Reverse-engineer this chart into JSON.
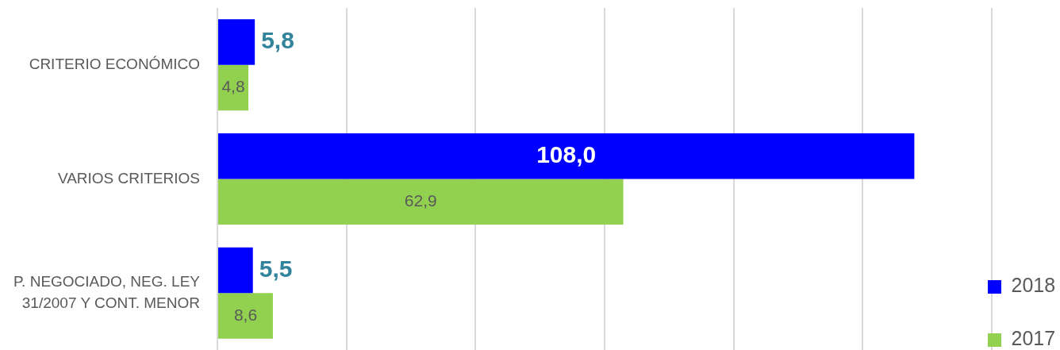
{
  "chart_data": {
    "type": "bar",
    "orientation": "horizontal",
    "categories": [
      "CRITERIO ECONÓMICO",
      "VARIOS CRITERIOS",
      "P. NEGOCIADO, NEG. LEY 31/2007 Y CONT. MENOR"
    ],
    "series": [
      {
        "name": "2018",
        "color": "#0000ff",
        "values": [
          5.8,
          108.0,
          5.5
        ],
        "value_labels": [
          "5,8",
          "108,0",
          "5,5"
        ]
      },
      {
        "name": "2017",
        "color": "#92d050",
        "values": [
          4.8,
          62.9,
          8.6
        ],
        "value_labels": [
          "4,8",
          "62,9",
          "8,6"
        ]
      }
    ],
    "xlim": [
      0,
      120
    ],
    "xticks": [
      {
        "value": 0,
        "label": null
      },
      {
        "value": 20,
        "label": null
      },
      {
        "value": 40,
        "label": null
      },
      {
        "value": 60,
        "label": null
      },
      {
        "value": 80,
        "label": null
      },
      {
        "value": 100,
        "label": null
      },
      {
        "value": 120,
        "label": null
      }
    ],
    "grid": "x",
    "legend": "bottom right",
    "tick_labels": "y"
  }
}
